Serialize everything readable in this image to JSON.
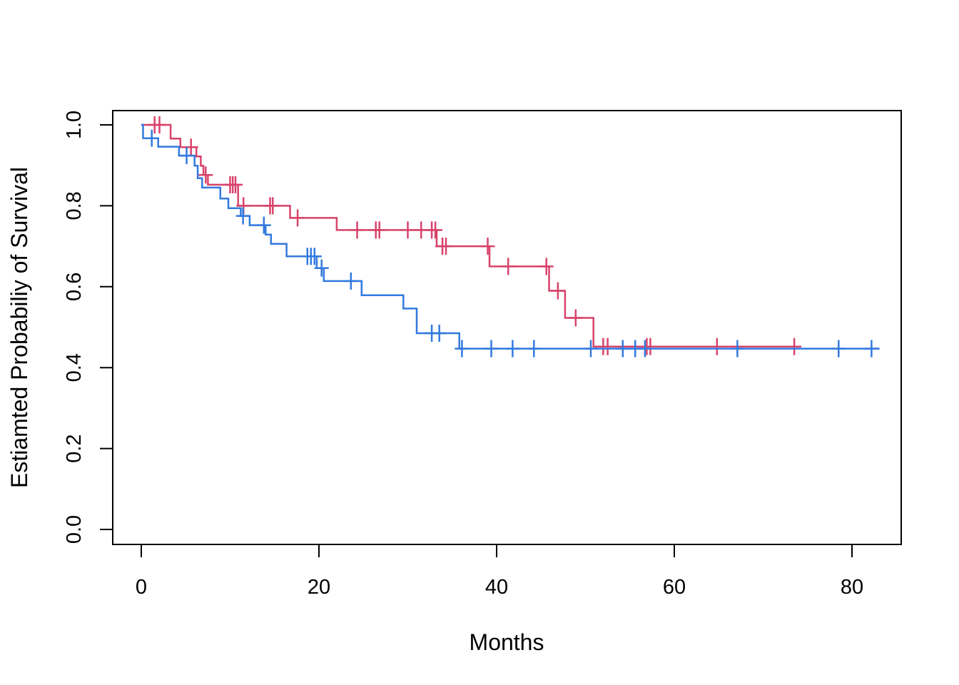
{
  "chart_data": {
    "type": "line",
    "subtype": "kaplan-meier-step",
    "title": "",
    "xlabel": "Months",
    "ylabel": "Estiamted Probabiliy of Survival",
    "x_ticks": [
      0,
      20,
      40,
      60,
      80
    ],
    "y_ticks": [
      "0.0",
      "0.2",
      "0.4",
      "0.6",
      "0.8",
      "1.0"
    ],
    "x_range": [
      0,
      83.1
    ],
    "y_range": [
      0.0,
      1.0
    ],
    "grid": false,
    "legend": "none",
    "axis_color": "#000000",
    "background_color": "#ffffff",
    "series": [
      {
        "name": "group-red",
        "color": "#d8436a",
        "line_width": 2.5,
        "end_time": 73.5,
        "steps": [
          [
            0,
            1.0
          ],
          [
            3.3,
            0.966
          ],
          [
            4.4,
            0.945
          ],
          [
            6.2,
            0.922
          ],
          [
            6.7,
            0.899
          ],
          [
            7.0,
            0.876
          ],
          [
            7.5,
            0.852
          ],
          [
            10.9,
            0.8
          ],
          [
            16.75,
            0.77
          ],
          [
            22.0,
            0.74
          ],
          [
            33.25,
            0.7
          ],
          [
            39.2,
            0.65
          ],
          [
            45.9,
            0.59
          ],
          [
            47.7,
            0.523
          ],
          [
            50.9,
            0.452
          ]
        ],
        "censors": [
          [
            1.5,
            1.0
          ],
          [
            2.05,
            1.0
          ],
          [
            5.6,
            0.945
          ],
          [
            7.25,
            0.876
          ],
          [
            10.0,
            0.852
          ],
          [
            10.3,
            0.852
          ],
          [
            10.6,
            0.852
          ],
          [
            11.5,
            0.8
          ],
          [
            14.5,
            0.8
          ],
          [
            14.8,
            0.8
          ],
          [
            17.6,
            0.77
          ],
          [
            24.3,
            0.74
          ],
          [
            26.4,
            0.74
          ],
          [
            26.8,
            0.74
          ],
          [
            30.0,
            0.74
          ],
          [
            31.5,
            0.74
          ],
          [
            32.7,
            0.74
          ],
          [
            33.1,
            0.74
          ],
          [
            33.9,
            0.7
          ],
          [
            34.3,
            0.7
          ],
          [
            39.0,
            0.7
          ],
          [
            41.3,
            0.65
          ],
          [
            45.6,
            0.65
          ],
          [
            46.9,
            0.59
          ],
          [
            48.9,
            0.523
          ],
          [
            52.0,
            0.452
          ],
          [
            52.5,
            0.452
          ],
          [
            56.9,
            0.452
          ],
          [
            57.3,
            0.452
          ],
          [
            64.8,
            0.452
          ],
          [
            73.5,
            0.452
          ]
        ]
      },
      {
        "name": "group-blue",
        "color": "#3279df",
        "line_width": 2.5,
        "end_time": 83.1,
        "steps": [
          [
            0,
            1.0
          ],
          [
            0.2,
            0.967
          ],
          [
            1.9,
            0.946
          ],
          [
            4.25,
            0.924
          ],
          [
            6.0,
            0.899
          ],
          [
            6.35,
            0.868
          ],
          [
            6.85,
            0.845
          ],
          [
            8.9,
            0.818
          ],
          [
            9.8,
            0.794
          ],
          [
            11.2,
            0.775
          ],
          [
            12.2,
            0.752
          ],
          [
            14.0,
            0.729
          ],
          [
            14.6,
            0.706
          ],
          [
            16.35,
            0.675
          ],
          [
            19.75,
            0.646
          ],
          [
            20.55,
            0.614
          ],
          [
            24.8,
            0.579
          ],
          [
            29.5,
            0.546
          ],
          [
            31.0,
            0.485
          ],
          [
            35.8,
            0.447
          ]
        ],
        "censors": [
          [
            1.18,
            0.967
          ],
          [
            5.1,
            0.924
          ],
          [
            11.45,
            0.775
          ],
          [
            13.8,
            0.752
          ],
          [
            18.7,
            0.675
          ],
          [
            19.1,
            0.675
          ],
          [
            19.5,
            0.675
          ],
          [
            20.3,
            0.646
          ],
          [
            23.6,
            0.614
          ],
          [
            32.7,
            0.485
          ],
          [
            33.55,
            0.485
          ],
          [
            36.1,
            0.447
          ],
          [
            39.4,
            0.447
          ],
          [
            41.8,
            0.447
          ],
          [
            44.2,
            0.447
          ],
          [
            50.6,
            0.447
          ],
          [
            54.2,
            0.447
          ],
          [
            55.6,
            0.447
          ],
          [
            56.7,
            0.447
          ],
          [
            67.1,
            0.447
          ],
          [
            78.5,
            0.447
          ],
          [
            82.2,
            0.447
          ]
        ]
      }
    ]
  }
}
